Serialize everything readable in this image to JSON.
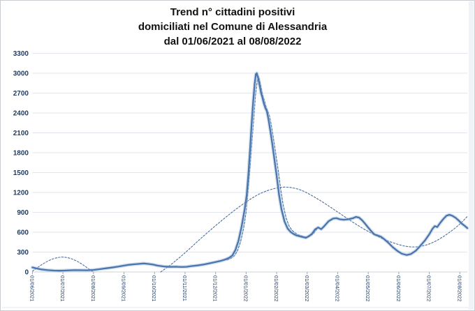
{
  "title": {
    "line1": "Trend n° cittadini positivi",
    "line2": "domiciliati nel Comune di Alessandria",
    "line3": "dal 01/06/2021 al 08/08/2022"
  },
  "chart_data": {
    "type": "line",
    "title": "Trend n° cittadini positivi domiciliati nel Comune di Alessandria dal 01/06/2021 al 08/08/2022",
    "xlabel": "",
    "ylabel": "",
    "grid": true,
    "legend": "none",
    "ylim": [
      0,
      3300
    ],
    "yticks": [
      0,
      300,
      600,
      900,
      1200,
      1500,
      1800,
      2100,
      2400,
      2700,
      3000,
      3300
    ],
    "x_tick_labels": [
      "01/06/2021",
      "01/07/2021",
      "01/08/2021",
      "01/09/2021",
      "01/10/2021",
      "01/11/2021",
      "01/12/2021",
      "01/01/2022",
      "01/02/2022",
      "01/03/2022",
      "01/04/2022",
      "01/05/2022",
      "01/06/2022",
      "01/07/2022",
      "01/08/2022"
    ],
    "xlim_months": [
      0,
      14.245
    ],
    "colors": {
      "line": "#4a76ae",
      "halo": "#a9bfdc",
      "trend": "#4d6f9f",
      "grid": "#e2e6ec",
      "axis": "#ccd2da",
      "tick": "#9aa5b2",
      "label": "#1f3a5f",
      "title": "#111111",
      "border": "#c9ccd0",
      "inner_bottom_line": "#e4e7ea"
    },
    "layout": {
      "plot_left": 45.4,
      "plot_right": 668,
      "plot_top": 75.5,
      "plot_bottom": 389,
      "x_label_y": 394,
      "y_label_x": 40,
      "bottom_line_y": 440
    },
    "series": [
      {
        "name": "trend-polinomiale-segmento-1",
        "style": "dashed",
        "smooth": true,
        "width": 1.1,
        "dash": "2.5,2.2",
        "color_key": "trend",
        "points": [
          [
            0,
            12
          ],
          [
            0.2,
            78
          ],
          [
            0.4,
            138
          ],
          [
            0.6,
            186
          ],
          [
            0.8,
            216
          ],
          [
            0.97,
            227
          ],
          [
            1.15,
            218
          ],
          [
            1.35,
            188
          ],
          [
            1.55,
            140
          ],
          [
            1.75,
            78
          ],
          [
            1.95,
            12
          ],
          [
            2.0,
            0
          ]
        ]
      },
      {
        "name": "trend-polinomiale-segmento-2",
        "style": "dashed",
        "smooth": true,
        "width": 1.1,
        "dash": "2.5,2.2",
        "color_key": "trend",
        "points": [
          [
            4.2,
            0
          ],
          [
            4.5,
            95
          ],
          [
            4.8,
            210
          ],
          [
            5.1,
            330
          ],
          [
            5.5,
            500
          ],
          [
            6,
            700
          ],
          [
            6.5,
            890
          ],
          [
            7,
            1060
          ],
          [
            7.5,
            1200
          ],
          [
            8,
            1272
          ],
          [
            8.35,
            1285
          ],
          [
            8.7,
            1255
          ],
          [
            9,
            1195
          ],
          [
            9.5,
            1060
          ],
          [
            10,
            905
          ],
          [
            10.5,
            748
          ],
          [
            11,
            608
          ],
          [
            11.5,
            492
          ],
          [
            12,
            410
          ],
          [
            12.4,
            372
          ],
          [
            12.8,
            388
          ],
          [
            13.2,
            458
          ],
          [
            13.6,
            575
          ],
          [
            14,
            718
          ],
          [
            14.245,
            838
          ]
        ]
      },
      {
        "name": "media-mobile-tratteggiata",
        "style": "dashed",
        "smooth": false,
        "width": 1.2,
        "dash": "3,2",
        "color_key": "line",
        "points": [
          [
            6.38,
            180
          ],
          [
            6.52,
            210
          ],
          [
            6.62,
            245
          ],
          [
            6.72,
            322
          ],
          [
            6.82,
            458
          ],
          [
            6.92,
            660
          ],
          [
            7.0,
            900
          ],
          [
            7.08,
            1300
          ],
          [
            7.14,
            1640
          ],
          [
            7.2,
            2010
          ],
          [
            7.26,
            2370
          ],
          [
            7.31,
            2680
          ],
          [
            7.37,
            2900
          ],
          [
            7.41,
            2950
          ],
          [
            7.46,
            2860
          ],
          [
            7.51,
            2745
          ],
          [
            7.55,
            2655
          ],
          [
            7.6,
            2590
          ],
          [
            7.65,
            2500
          ],
          [
            7.7,
            2440
          ],
          [
            7.76,
            2365
          ],
          [
            7.82,
            2230
          ],
          [
            7.89,
            2035
          ],
          [
            7.97,
            1790
          ],
          [
            8.05,
            1540
          ],
          [
            8.13,
            1255
          ],
          [
            8.21,
            1020
          ],
          [
            8.31,
            815
          ],
          [
            8.41,
            690
          ],
          [
            8.51,
            625
          ],
          [
            8.61,
            588
          ],
          [
            8.71,
            560
          ],
          [
            8.81,
            545
          ],
          [
            8.91,
            530
          ],
          [
            9.01,
            522
          ],
          [
            9.11,
            545
          ],
          [
            9.21,
            580
          ],
          [
            9.31,
            640
          ]
        ]
      },
      {
        "name": "cittadini-positivi",
        "style": "solid",
        "smooth": false,
        "width": 2.3,
        "halo": true,
        "halo_width": 5,
        "color_key": "line",
        "points": [
          [
            0,
            68
          ],
          [
            0.15,
            52
          ],
          [
            0.3,
            38
          ],
          [
            0.5,
            27
          ],
          [
            0.7,
            21
          ],
          [
            0.9,
            19
          ],
          [
            1.05,
            21
          ],
          [
            1.2,
            24
          ],
          [
            1.4,
            27
          ],
          [
            1.6,
            26
          ],
          [
            1.8,
            25
          ],
          [
            2,
            30
          ],
          [
            2.2,
            42
          ],
          [
            2.4,
            55
          ],
          [
            2.6,
            66
          ],
          [
            2.8,
            80
          ],
          [
            3,
            96
          ],
          [
            3.15,
            107
          ],
          [
            3.3,
            115
          ],
          [
            3.5,
            122
          ],
          [
            3.65,
            128
          ],
          [
            3.8,
            121
          ],
          [
            3.95,
            112
          ],
          [
            4.1,
            96
          ],
          [
            4.3,
            83
          ],
          [
            4.5,
            77
          ],
          [
            4.7,
            79
          ],
          [
            4.9,
            75
          ],
          [
            5.05,
            78
          ],
          [
            5.2,
            88
          ],
          [
            5.4,
            98
          ],
          [
            5.6,
            112
          ],
          [
            5.8,
            130
          ],
          [
            6,
            150
          ],
          [
            6.15,
            165
          ],
          [
            6.3,
            185
          ],
          [
            6.45,
            215
          ],
          [
            6.55,
            250
          ],
          [
            6.65,
            330
          ],
          [
            6.75,
            470
          ],
          [
            6.85,
            680
          ],
          [
            6.95,
            940
          ],
          [
            7.02,
            1160
          ],
          [
            7.08,
            1500
          ],
          [
            7.13,
            1850
          ],
          [
            7.18,
            2230
          ],
          [
            7.23,
            2560
          ],
          [
            7.28,
            2840
          ],
          [
            7.32,
            2985
          ],
          [
            7.35,
            3000
          ],
          [
            7.4,
            2915
          ],
          [
            7.45,
            2800
          ],
          [
            7.49,
            2700
          ],
          [
            7.53,
            2640
          ],
          [
            7.58,
            2545
          ],
          [
            7.63,
            2475
          ],
          [
            7.68,
            2425
          ],
          [
            7.73,
            2310
          ],
          [
            7.79,
            2140
          ],
          [
            7.86,
            1930
          ],
          [
            7.93,
            1690
          ],
          [
            8,
            1450
          ],
          [
            8.08,
            1165
          ],
          [
            8.16,
            945
          ],
          [
            8.26,
            760
          ],
          [
            8.36,
            655
          ],
          [
            8.46,
            602
          ],
          [
            8.56,
            572
          ],
          [
            8.66,
            550
          ],
          [
            8.76,
            538
          ],
          [
            8.86,
            526
          ],
          [
            8.96,
            516
          ],
          [
            9.06,
            542
          ],
          [
            9.16,
            578
          ],
          [
            9.26,
            642
          ],
          [
            9.36,
            672
          ],
          [
            9.46,
            646
          ],
          [
            9.56,
            692
          ],
          [
            9.7,
            766
          ],
          [
            9.85,
            806
          ],
          [
            9.96,
            812
          ],
          [
            10.06,
            796
          ],
          [
            10.2,
            788
          ],
          [
            10.36,
            796
          ],
          [
            10.5,
            812
          ],
          [
            10.6,
            832
          ],
          [
            10.7,
            820
          ],
          [
            10.8,
            780
          ],
          [
            10.9,
            726
          ],
          [
            11,
            668
          ],
          [
            11.1,
            616
          ],
          [
            11.2,
            566
          ],
          [
            11.32,
            548
          ],
          [
            11.42,
            530
          ],
          [
            11.52,
            496
          ],
          [
            11.66,
            440
          ],
          [
            11.8,
            376
          ],
          [
            11.96,
            316
          ],
          [
            12.1,
            276
          ],
          [
            12.26,
            256
          ],
          [
            12.4,
            272
          ],
          [
            12.56,
            322
          ],
          [
            12.7,
            392
          ],
          [
            12.86,
            478
          ],
          [
            13,
            570
          ],
          [
            13.1,
            650
          ],
          [
            13.18,
            692
          ],
          [
            13.26,
            678
          ],
          [
            13.36,
            742
          ],
          [
            13.46,
            800
          ],
          [
            13.56,
            848
          ],
          [
            13.66,
            863
          ],
          [
            13.76,
            846
          ],
          [
            13.86,
            818
          ],
          [
            13.96,
            778
          ],
          [
            14.06,
            730
          ],
          [
            14.16,
            696
          ],
          [
            14.245,
            662
          ]
        ]
      }
    ]
  }
}
